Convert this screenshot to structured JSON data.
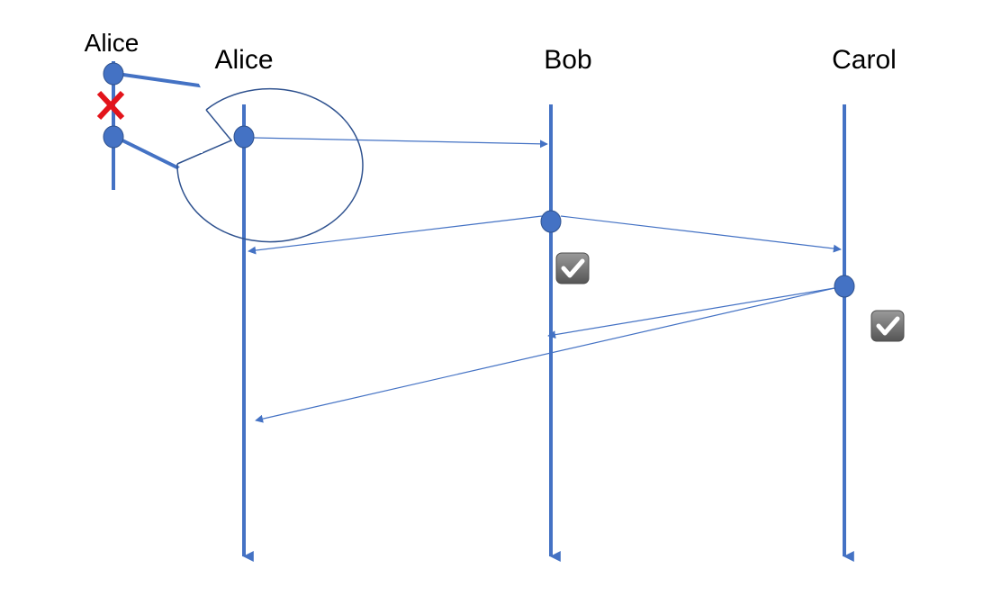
{
  "participants": [
    {
      "id": "alice",
      "label": "Alice"
    },
    {
      "id": "bob",
      "label": "Bob"
    },
    {
      "id": "carol",
      "label": "Carol"
    }
  ],
  "zoom_callout": {
    "participant_label": "Alice",
    "marker_icon": "red-x-icon"
  },
  "messages": [
    {
      "from": "alice",
      "to": "bob"
    },
    {
      "from": "bob",
      "to": "alice"
    },
    {
      "from": "bob",
      "to": "carol"
    },
    {
      "from": "carol",
      "to": "bob"
    },
    {
      "from": "carol",
      "to": "alice"
    }
  ],
  "confirmations": [
    {
      "participant": "bob",
      "icon": "checkbox-checked-icon"
    },
    {
      "participant": "carol",
      "icon": "checkbox-checked-icon"
    }
  ],
  "colors": {
    "line": "#4472C4",
    "node_fill": "#4472C4",
    "node_stroke": "#2F528F",
    "callout_stroke": "#2F528F",
    "cross": "#E3141B",
    "checkbox_fill": "#6E6E6E",
    "check": "#ffffff"
  }
}
